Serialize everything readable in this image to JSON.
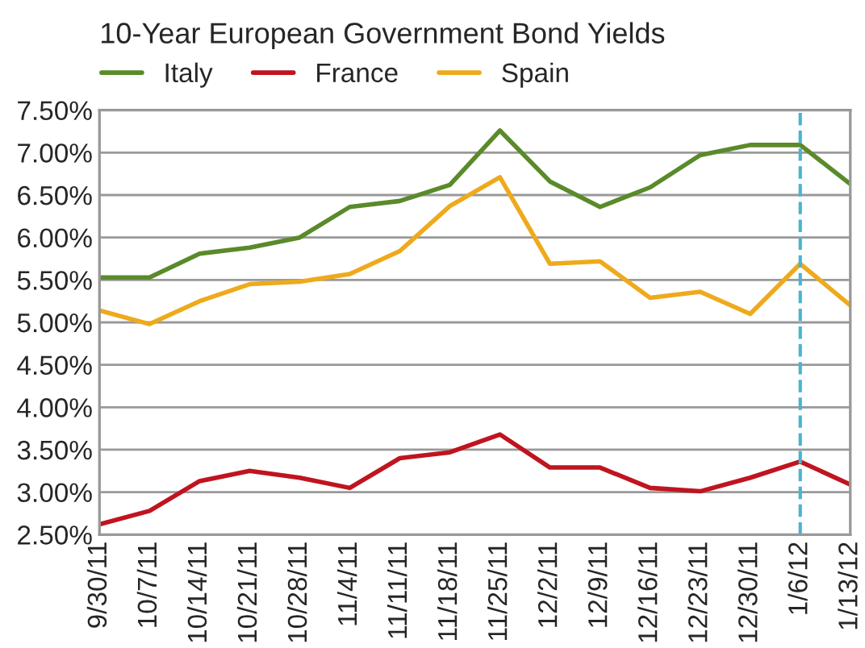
{
  "chart_data": {
    "type": "line",
    "title": "10-Year European Government Bond Yields",
    "categories": [
      "9/30/11",
      "10/7/11",
      "10/14/11",
      "10/21/11",
      "10/28/11",
      "11/4/11",
      "11/11/11",
      "11/18/11",
      "11/25/11",
      "12/2/11",
      "12/9/11",
      "12/16/11",
      "12/23/11",
      "12/30/11",
      "1/6/12",
      "1/13/12"
    ],
    "series": [
      {
        "name": "Italy",
        "color": "#5a8a2a",
        "values": [
          5.53,
          5.53,
          5.81,
          5.88,
          6.0,
          6.36,
          6.43,
          6.62,
          7.26,
          6.66,
          6.36,
          6.59,
          6.97,
          7.09,
          7.09,
          6.63
        ]
      },
      {
        "name": "France",
        "color": "#c0141f",
        "values": [
          2.62,
          2.78,
          3.13,
          3.25,
          3.17,
          3.05,
          3.4,
          3.47,
          3.68,
          3.29,
          3.29,
          3.05,
          3.01,
          3.17,
          3.36,
          3.09
        ]
      },
      {
        "name": "Spain",
        "color": "#eeaa1c",
        "values": [
          5.14,
          4.98,
          5.25,
          5.45,
          5.48,
          5.57,
          5.84,
          6.37,
          6.71,
          5.69,
          5.72,
          5.29,
          5.36,
          5.1,
          5.69,
          5.2
        ]
      }
    ],
    "ylim": [
      2.5,
      7.5
    ],
    "yticks": [
      {
        "value": 2.5,
        "label": "2.50%"
      },
      {
        "value": 3.0,
        "label": "3.00%"
      },
      {
        "value": 3.5,
        "label": "3.50%"
      },
      {
        "value": 4.0,
        "label": "4.00%"
      },
      {
        "value": 4.5,
        "label": "4.50%"
      },
      {
        "value": 5.0,
        "label": "5.00%"
      },
      {
        "value": 5.5,
        "label": "5.50%"
      },
      {
        "value": 6.0,
        "label": "6.00%"
      },
      {
        "value": 6.5,
        "label": "6.50%"
      },
      {
        "value": 7.0,
        "label": "7.00%"
      },
      {
        "value": 7.5,
        "label": "7.50%"
      }
    ],
    "ref_lines": [
      {
        "axis": "x",
        "value": "1/6/12",
        "color": "#4ab3d1",
        "line_style": "dashed"
      }
    ],
    "grid": "y",
    "legend": "top left",
    "marker": "none",
    "line_style": "solid"
  }
}
